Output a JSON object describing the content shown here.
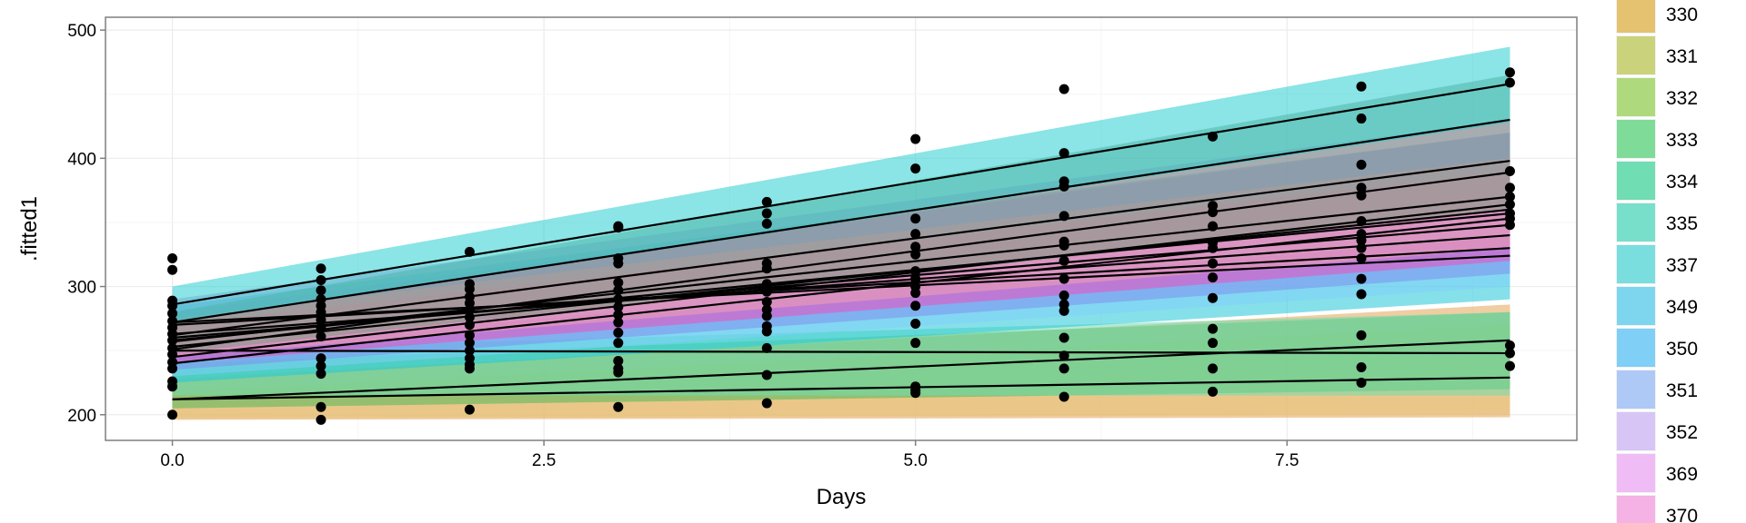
{
  "chart_data": {
    "type": "line",
    "title": "",
    "xlabel": "Days",
    "ylabel": ".fitted1",
    "xlim": [
      -0.45,
      9.45
    ],
    "ylim": [
      180,
      510
    ],
    "x_ticks": [
      0.0,
      2.5,
      5.0,
      7.5
    ],
    "x_tick_labels": [
      "0.0",
      "2.5",
      "5.0",
      "7.5"
    ],
    "y_ticks": [
      200,
      300,
      400,
      500
    ],
    "y_tick_labels": [
      "200",
      "300",
      "400",
      "500"
    ],
    "grid": true,
    "legend_position": "right",
    "legend": [
      {
        "label": "330",
        "color": "#E4C270"
      },
      {
        "label": "331",
        "color": "#CBD27C"
      },
      {
        "label": "332",
        "color": "#AED97C"
      },
      {
        "label": "333",
        "color": "#7FDB98"
      },
      {
        "label": "334",
        "color": "#70DDB2"
      },
      {
        "label": "335",
        "color": "#78DFCB"
      },
      {
        "label": "337",
        "color": "#7ADDDE"
      },
      {
        "label": "349",
        "color": "#7DD5EE"
      },
      {
        "label": "350",
        "color": "#7FCFF7"
      },
      {
        "label": "351",
        "color": "#AFC9F7"
      },
      {
        "label": "352",
        "color": "#D7C5F5"
      },
      {
        "label": "369",
        "color": "#EFBCF5"
      },
      {
        "label": "370",
        "color": "#F5B2E4"
      }
    ],
    "bands": [
      {
        "color": "#E4A455",
        "y0_lo": 196,
        "y0_hi": 228,
        "y9_lo": 198,
        "y9_hi": 286
      },
      {
        "color": "#E6C272",
        "y0_lo": 197,
        "y0_hi": 218,
        "y9_lo": 200,
        "y9_hi": 270
      },
      {
        "color": "#4FB85A",
        "y0_lo": 205,
        "y0_hi": 240,
        "y9_lo": 220,
        "y9_hi": 280
      },
      {
        "color": "#70DDB2",
        "y0_lo": 215,
        "y0_hi": 250,
        "y9_lo": 215,
        "y9_hi": 280
      },
      {
        "color": "#22C6D8",
        "y0_lo": 225,
        "y0_hi": 285,
        "y9_lo": 290,
        "y9_hi": 420
      },
      {
        "color": "#7FCFF7",
        "y0_lo": 230,
        "y0_hi": 275,
        "y9_lo": 300,
        "y9_hi": 395
      },
      {
        "color": "#7F8FEF",
        "y0_lo": 235,
        "y0_hi": 280,
        "y9_lo": 310,
        "y9_hi": 420
      },
      {
        "color": "#EE4FC0",
        "y0_lo": 240,
        "y0_hi": 270,
        "y9_lo": 320,
        "y9_hi": 390
      },
      {
        "color": "#C38FD8",
        "y0_lo": 250,
        "y0_hi": 290,
        "y9_lo": 340,
        "y9_hi": 430
      },
      {
        "color": "#F0A2B0",
        "y0_lo": 245,
        "y0_hi": 275,
        "y9_lo": 330,
        "y9_hi": 400
      },
      {
        "color": "#7A9A80",
        "y0_lo": 248,
        "y0_hi": 280,
        "y9_lo": 360,
        "y9_hi": 465
      },
      {
        "color": "#2BCDD0",
        "y0_lo": 272,
        "y0_hi": 300,
        "y9_lo": 428,
        "y9_hi": 487
      }
    ],
    "lines": [
      [
        286,
        458
      ],
      [
        272,
        430
      ],
      [
        262,
        398
      ],
      [
        251,
        389
      ],
      [
        257,
        370
      ],
      [
        245,
        364
      ],
      [
        253,
        360
      ],
      [
        258,
        357
      ],
      [
        240,
        353
      ],
      [
        260,
        348
      ],
      [
        263,
        340
      ],
      [
        270,
        330
      ],
      [
        272,
        324
      ],
      [
        250,
        248
      ],
      [
        212,
        258
      ],
      [
        212,
        229
      ]
    ],
    "points": [
      {
        "x": 0,
        "y": [
          322,
          313,
          289,
          285,
          279,
          273,
          268,
          263,
          258,
          252,
          247,
          241,
          236,
          226,
          222,
          200
        ]
      },
      {
        "x": 1,
        "y": [
          314,
          305,
          297,
          290,
          285,
          280,
          274,
          268,
          261,
          244,
          238,
          232,
          206,
          196
        ]
      },
      {
        "x": 2,
        "y": [
          327,
          302,
          298,
          292,
          287,
          282,
          276,
          270,
          262,
          256,
          250,
          244,
          239,
          236,
          204
        ]
      },
      {
        "x": 3,
        "y": [
          347,
          346,
          322,
          318,
          303,
          297,
          290,
          284,
          278,
          272,
          264,
          256,
          242,
          236,
          233,
          206
        ]
      },
      {
        "x": 4,
        "y": [
          366,
          357,
          349,
          318,
          314,
          302,
          296,
          288,
          282,
          277,
          269,
          265,
          252,
          231,
          209
        ]
      },
      {
        "x": 5,
        "y": [
          415,
          392,
          353,
          341,
          331,
          325,
          312,
          306,
          300,
          295,
          285,
          271,
          256,
          222,
          219,
          217
        ]
      },
      {
        "x": 6,
        "y": [
          454,
          404,
          382,
          378,
          355,
          335,
          332,
          320,
          306,
          293,
          286,
          281,
          260,
          246,
          236,
          214
        ]
      },
      {
        "x": 7,
        "y": [
          417,
          363,
          358,
          347,
          334,
          330,
          318,
          307,
          291,
          267,
          256,
          236,
          218
        ]
      },
      {
        "x": 8,
        "y": [
          456,
          431,
          395,
          377,
          371,
          351,
          341,
          336,
          330,
          322,
          306,
          294,
          262,
          237,
          225
        ]
      },
      {
        "x": 9,
        "y": [
          467,
          459,
          390,
          377,
          370,
          364,
          357,
          353,
          348,
          254,
          248,
          238
        ]
      }
    ]
  }
}
